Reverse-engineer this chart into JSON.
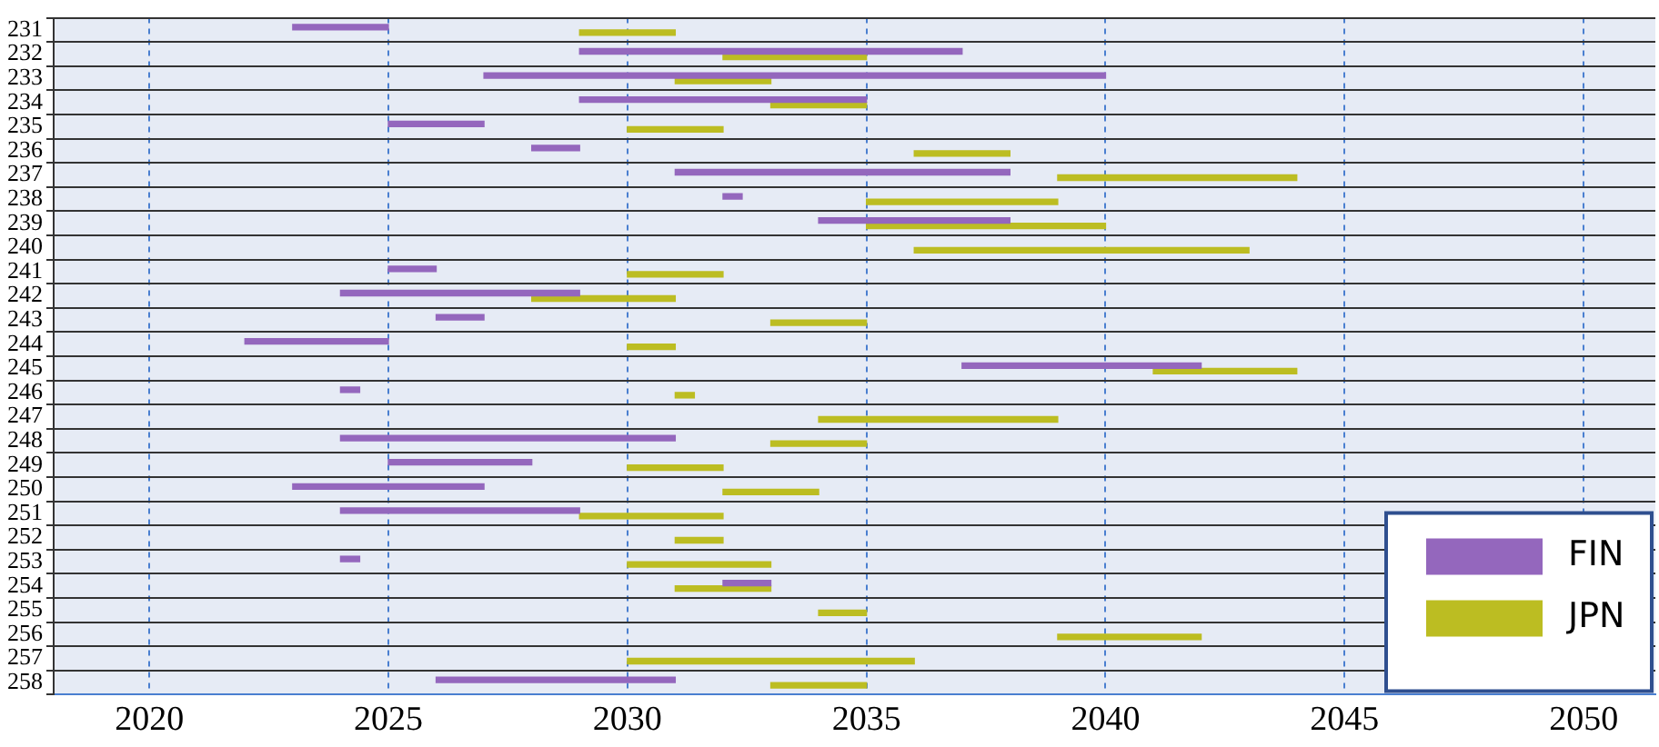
{
  "chart_data": {
    "type": "bar",
    "orientation": "horizontal",
    "categories": [
      "231",
      "232",
      "233",
      "234",
      "235",
      "236",
      "237",
      "238",
      "239",
      "240",
      "241",
      "242",
      "243",
      "244",
      "245",
      "246",
      "247",
      "248",
      "249",
      "250",
      "251",
      "252",
      "253",
      "254",
      "255",
      "256",
      "257",
      "258"
    ],
    "series": [
      {
        "name": "FIN",
        "color": "#9467bd",
        "base": [
          2023,
          2029,
          2027,
          2029,
          2025,
          2028,
          2031,
          2032,
          2034,
          null,
          2025,
          2024,
          2026,
          2022,
          2037,
          2024,
          null,
          2024,
          2025,
          2023,
          2024,
          null,
          2024,
          2032,
          null,
          null,
          null,
          2026
        ],
        "values": [
          2,
          8,
          13,
          6,
          2,
          1,
          7,
          0.4,
          4,
          null,
          1,
          5,
          1,
          3,
          5,
          0.4,
          null,
          7,
          3,
          4,
          5,
          null,
          0.4,
          1,
          null,
          null,
          null,
          5
        ]
      },
      {
        "name": "JPN",
        "color": "#bcbd22",
        "base": [
          2029,
          2032,
          2031,
          2033,
          2030,
          2036,
          2039,
          2035,
          2035,
          2036,
          2030,
          2028,
          2033,
          2030,
          2041,
          2031,
          2034,
          2033,
          2030,
          2032,
          2029,
          2031,
          2030,
          2031,
          2034,
          2039,
          2030,
          2033
        ],
        "values": [
          2,
          3,
          2,
          2,
          2,
          2,
          5,
          4,
          5,
          7,
          2,
          3,
          2,
          1,
          3,
          0.4,
          5,
          2,
          2,
          2,
          3,
          1,
          3,
          2,
          1,
          3,
          6,
          2
        ]
      }
    ],
    "xlim": [
      2018,
      2051.5
    ],
    "xticks": [
      2020,
      2025,
      2030,
      2035,
      2040,
      2045,
      2050
    ],
    "grid": true,
    "legend": "bottom right"
  }
}
